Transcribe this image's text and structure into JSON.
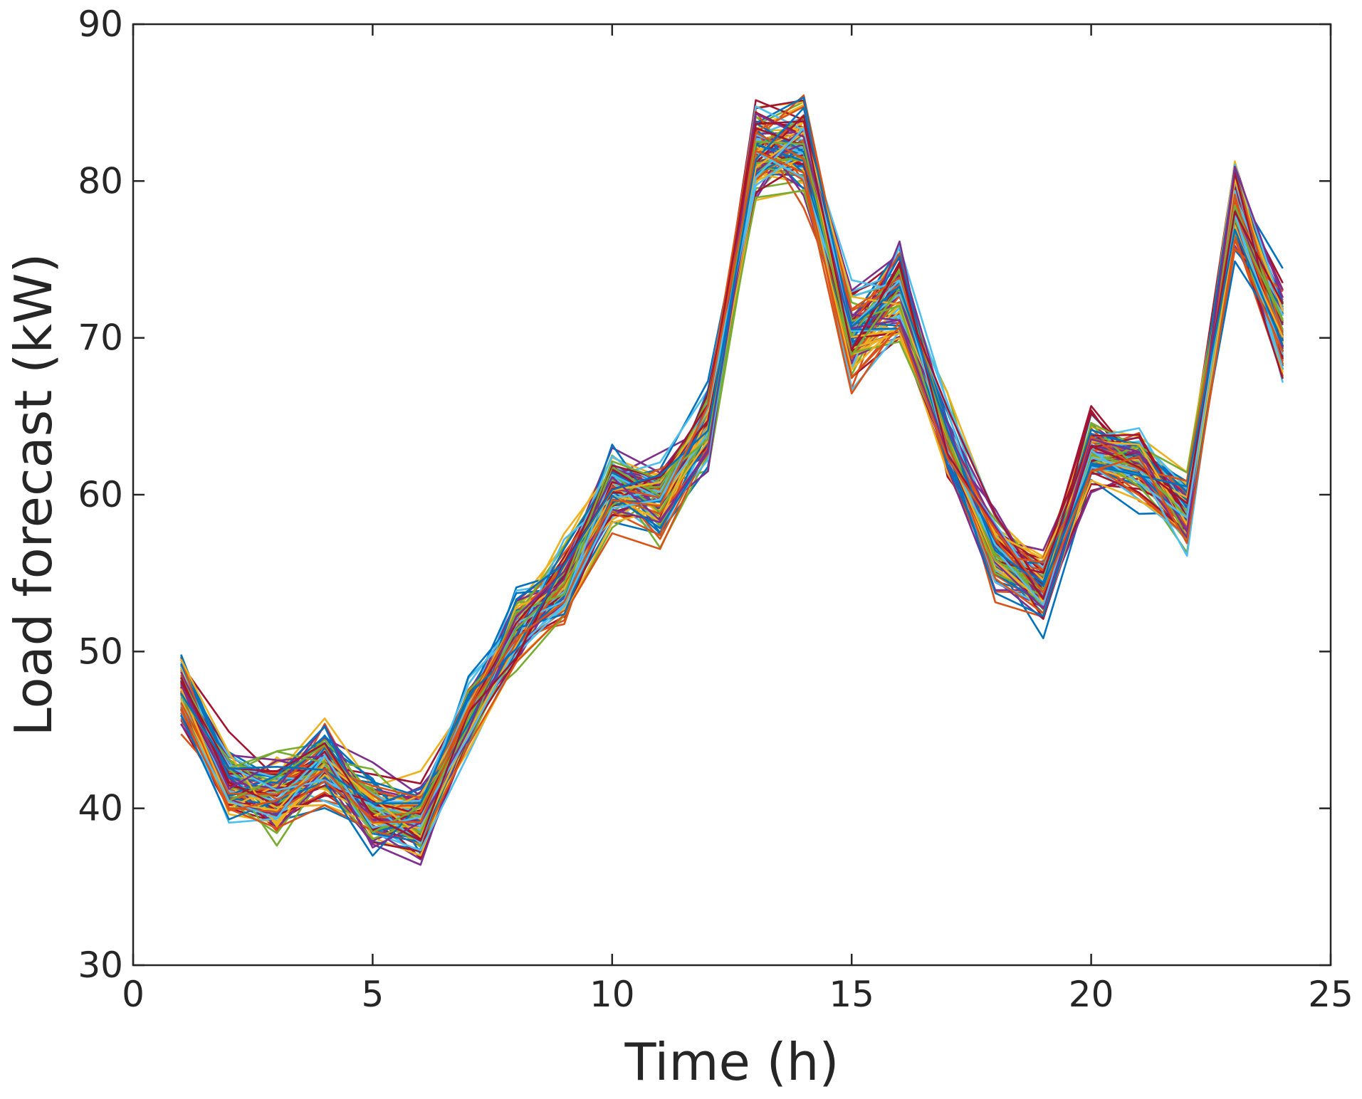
{
  "chart_data": {
    "type": "line",
    "title": "",
    "xlabel": "Time (h)",
    "ylabel": "Load forecast (kW)",
    "xlim": [
      0,
      25
    ],
    "ylim": [
      30,
      90
    ],
    "xticks": [
      0,
      5,
      10,
      15,
      20,
      25
    ],
    "yticks": [
      30,
      40,
      50,
      60,
      70,
      80,
      90
    ],
    "grid": false,
    "legend": "none",
    "x": [
      1,
      2,
      3,
      4,
      5,
      6,
      7,
      8,
      9,
      10,
      11,
      12,
      13,
      14,
      15,
      16,
      17,
      18,
      19,
      20,
      21,
      22,
      23,
      24
    ],
    "central_profile": [
      47.5,
      41.8,
      40.8,
      42.8,
      39.8,
      39.2,
      46.0,
      51.5,
      54.5,
      60.5,
      59.8,
      64.5,
      81.8,
      82.2,
      70.2,
      73.0,
      63.5,
      56.5,
      54.0,
      63.0,
      62.0,
      59.0,
      78.5,
      70.5
    ],
    "series_count": 100,
    "series_colors": [
      "#0072BD",
      "#D95319",
      "#EDB120",
      "#7E2F8E",
      "#77AC30",
      "#4DBEEE",
      "#A2142F"
    ]
  }
}
